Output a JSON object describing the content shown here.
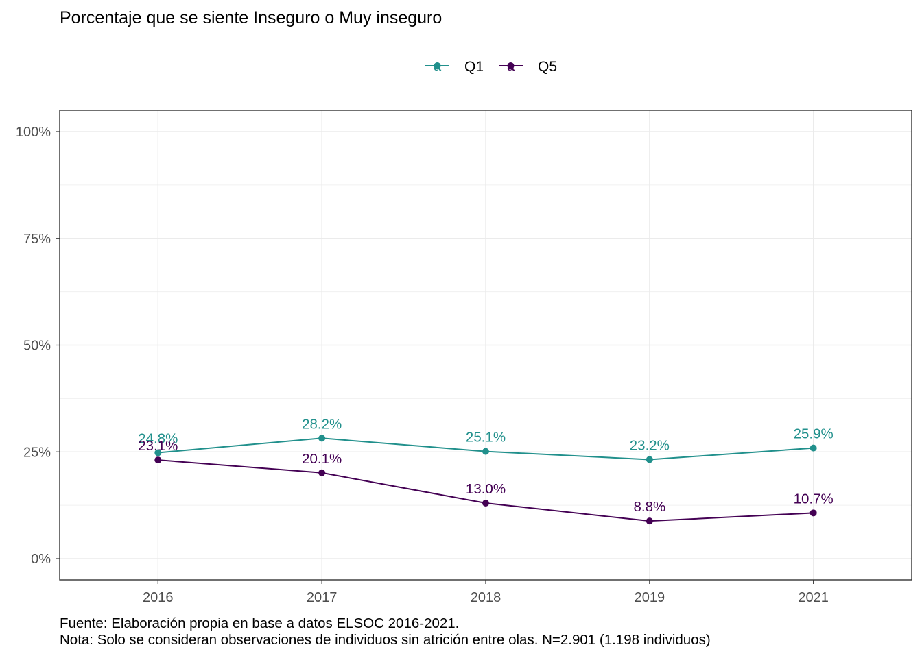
{
  "chart_data": {
    "type": "line",
    "title": "Porcentaje que se siente Inseguro o Muy inseguro",
    "xlabel": "",
    "ylabel": "",
    "x": [
      "2016",
      "2017",
      "2018",
      "2019",
      "2021"
    ],
    "ylim": [
      -0.05,
      1.05
    ],
    "yticks": [
      0,
      0.25,
      0.5,
      0.75,
      1.0
    ],
    "ytick_labels": [
      "0%",
      "25%",
      "50%",
      "75%",
      "100%"
    ],
    "series": [
      {
        "name": "Q1",
        "color": "#21908C",
        "values": [
          0.248,
          0.282,
          0.251,
          0.232,
          0.259
        ],
        "labels": [
          "24.8%",
          "28.2%",
          "25.1%",
          "23.2%",
          "25.9%"
        ]
      },
      {
        "name": "Q5",
        "color": "#440154",
        "values": [
          0.231,
          0.201,
          0.13,
          0.088,
          0.107
        ],
        "labels": [
          "23.1%",
          "20.1%",
          "13.0%",
          "8.8%",
          "10.7%"
        ]
      }
    ],
    "legend_position": "top",
    "legend_key_glyph": "a",
    "grid": true,
    "caption": [
      "Fuente: Elaboración propia en base a datos ELSOC 2016-2021.",
      "Nota: Solo se consideran observaciones de individuos sin atrición entre olas. N=2.901 (1.198 individuos)"
    ]
  }
}
